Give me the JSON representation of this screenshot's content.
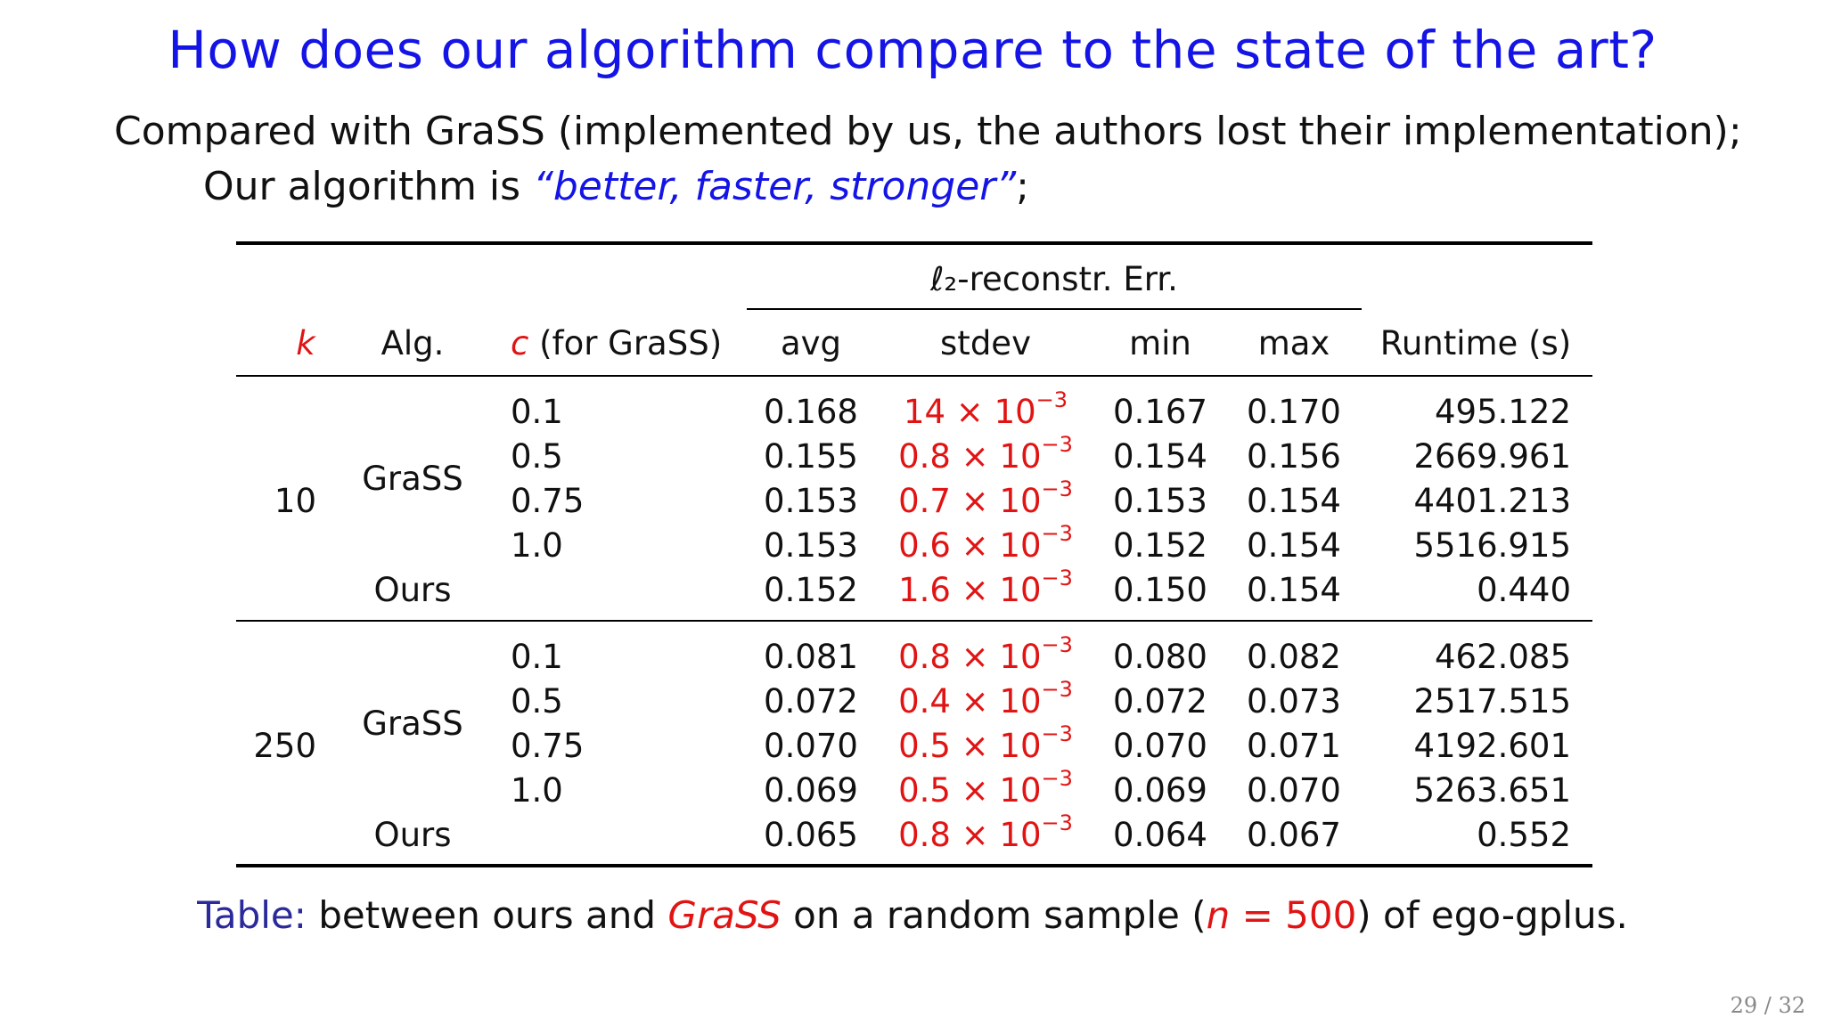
{
  "title": "How does our algorithm compare to the state of the art?",
  "intro": {
    "line1": "Compared with GraSS (implemented by us, the authors lost their implementation);",
    "line2_prefix": "Our algorithm is ",
    "line2_quote": "“better, faster, stronger”",
    "line2_suffix": ";"
  },
  "table": {
    "group_header": "ℓ₂-reconstr. Err.",
    "headers": {
      "k": "k",
      "alg": "Alg.",
      "c_var": "c",
      "c_rest": " (for GraSS)",
      "avg": "avg",
      "stdev": "stdev",
      "min": "min",
      "max": "max",
      "runtime": "Runtime (s)"
    },
    "groups": [
      {
        "k": "10",
        "grass_label": "GraSS",
        "rows": [
          {
            "alg": "",
            "c": "0.1",
            "avg": "0.168",
            "stdev_mant": "14",
            "stdev_exp": "−3",
            "min": "0.167",
            "max": "0.170",
            "runtime": "495.122"
          },
          {
            "alg": "",
            "c": "0.5",
            "avg": "0.155",
            "stdev_mant": "0.8",
            "stdev_exp": "−3",
            "min": "0.154",
            "max": "0.156",
            "runtime": "2669.961"
          },
          {
            "alg": "",
            "c": "0.75",
            "avg": "0.153",
            "stdev_mant": "0.7",
            "stdev_exp": "−3",
            "min": "0.153",
            "max": "0.154",
            "runtime": "4401.213"
          },
          {
            "alg": "",
            "c": "1.0",
            "avg": "0.153",
            "stdev_mant": "0.6",
            "stdev_exp": "−3",
            "min": "0.152",
            "max": "0.154",
            "runtime": "5516.915"
          },
          {
            "alg": "Ours",
            "c": "",
            "avg": "0.152",
            "stdev_mant": "1.6",
            "stdev_exp": "−3",
            "min": "0.150",
            "max": "0.154",
            "runtime": "0.440"
          }
        ]
      },
      {
        "k": "250",
        "grass_label": "GraSS",
        "rows": [
          {
            "alg": "",
            "c": "0.1",
            "avg": "0.081",
            "stdev_mant": "0.8",
            "stdev_exp": "−3",
            "min": "0.080",
            "max": "0.082",
            "runtime": "462.085"
          },
          {
            "alg": "",
            "c": "0.5",
            "avg": "0.072",
            "stdev_mant": "0.4",
            "stdev_exp": "−3",
            "min": "0.072",
            "max": "0.073",
            "runtime": "2517.515"
          },
          {
            "alg": "",
            "c": "0.75",
            "avg": "0.070",
            "stdev_mant": "0.5",
            "stdev_exp": "−3",
            "min": "0.070",
            "max": "0.071",
            "runtime": "4192.601"
          },
          {
            "alg": "",
            "c": "1.0",
            "avg": "0.069",
            "stdev_mant": "0.5",
            "stdev_exp": "−3",
            "min": "0.069",
            "max": "0.070",
            "runtime": "5263.651"
          },
          {
            "alg": "Ours",
            "c": "",
            "avg": "0.065",
            "stdev_mant": "0.8",
            "stdev_exp": "−3",
            "min": "0.064",
            "max": "0.067",
            "runtime": "0.552"
          }
        ]
      }
    ]
  },
  "caption": {
    "label": "Table:",
    "text1": " between ours and ",
    "grass": "GraSS",
    "text2": " on a random sample (",
    "n_var": "n",
    "eq": " = ",
    "n_val": "500",
    "text3": ") of ego-gplus."
  },
  "page_number": "29 / 32"
}
